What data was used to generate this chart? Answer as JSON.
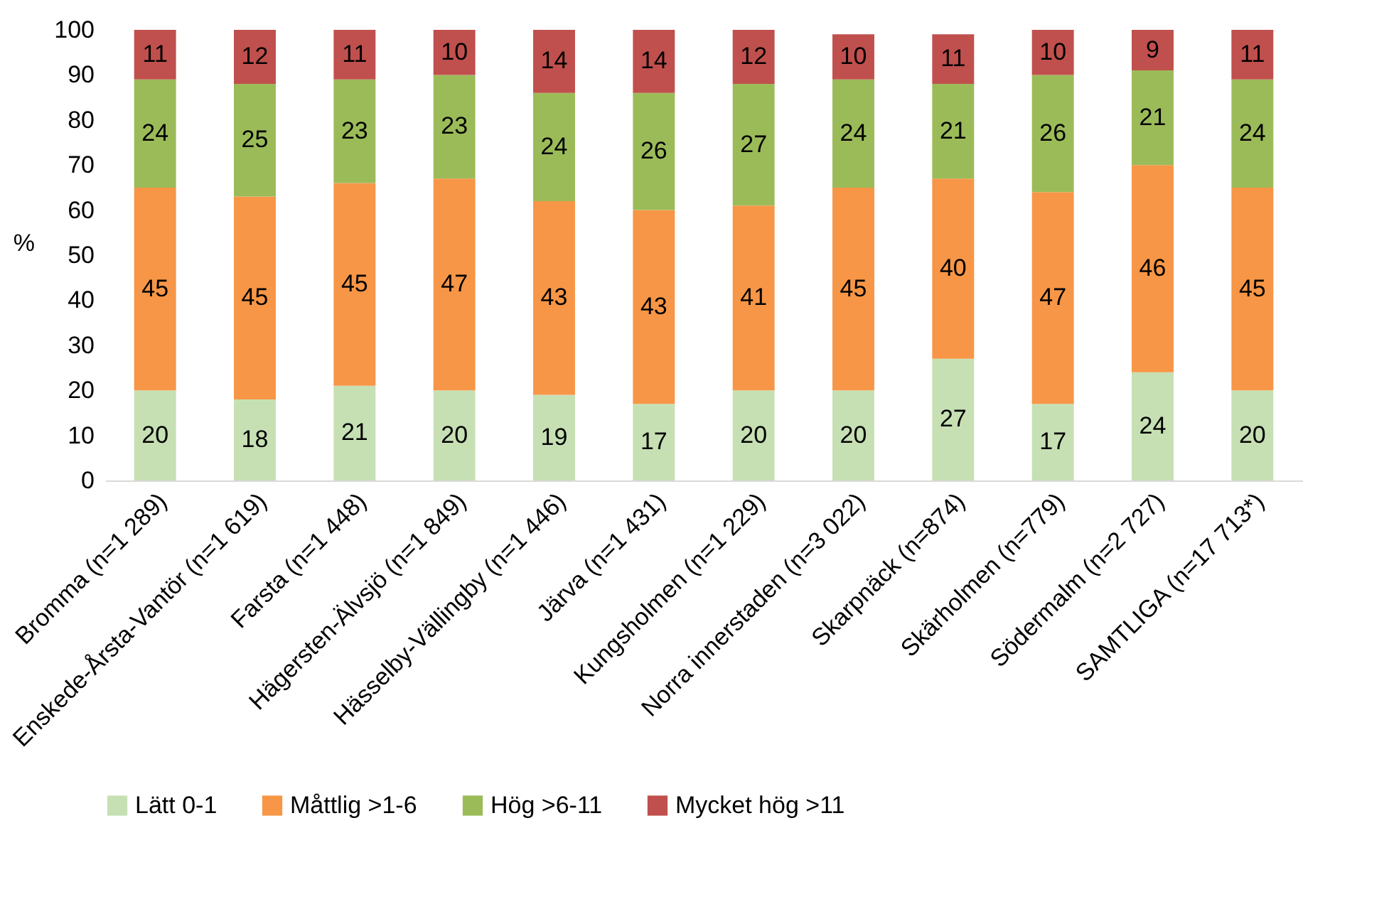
{
  "chart_data": {
    "type": "bar",
    "stacked": true,
    "ylabel": "%",
    "ylim": [
      0,
      100
    ],
    "yticks": [
      0,
      10,
      20,
      30,
      40,
      50,
      60,
      70,
      80,
      90,
      100
    ],
    "data_labels": true,
    "legend": "bottom",
    "grid": false,
    "categories": [
      "Bromma (n=1 289)",
      "Enskede-Årsta-Vantör (n=1 619)",
      "Farsta (n=1 448)",
      "Hägersten-Älvsjö (n=1 849)",
      "Hässelby-Vällingby (n=1 446)",
      "Järva (n=1 431)",
      "Kungsholmen (n=1 229)",
      "Norra innerstaden (n=3 022)",
      "Skarpnäck (n=874)",
      "Skärholmen (n=779)",
      "Södermalm (n=2 727)",
      "SAMTLIGA (n=17 713*)"
    ],
    "series": [
      {
        "name": "Lätt 0-1",
        "color": "#c6e0b4",
        "values": [
          20,
          18,
          21,
          20,
          19,
          17,
          20,
          20,
          27,
          17,
          24,
          20
        ]
      },
      {
        "name": "Måttlig >1-6",
        "color": "#f79646",
        "values": [
          45,
          45,
          45,
          47,
          43,
          43,
          41,
          45,
          40,
          47,
          46,
          45
        ]
      },
      {
        "name": "Hög >6-11",
        "color": "#9bbb59",
        "values": [
          24,
          25,
          23,
          23,
          24,
          26,
          27,
          24,
          21,
          26,
          21,
          24
        ]
      },
      {
        "name": "Mycket hög >11",
        "color": "#c0504d",
        "values": [
          11,
          12,
          11,
          10,
          14,
          14,
          12,
          10,
          11,
          10,
          9,
          11
        ]
      }
    ]
  }
}
